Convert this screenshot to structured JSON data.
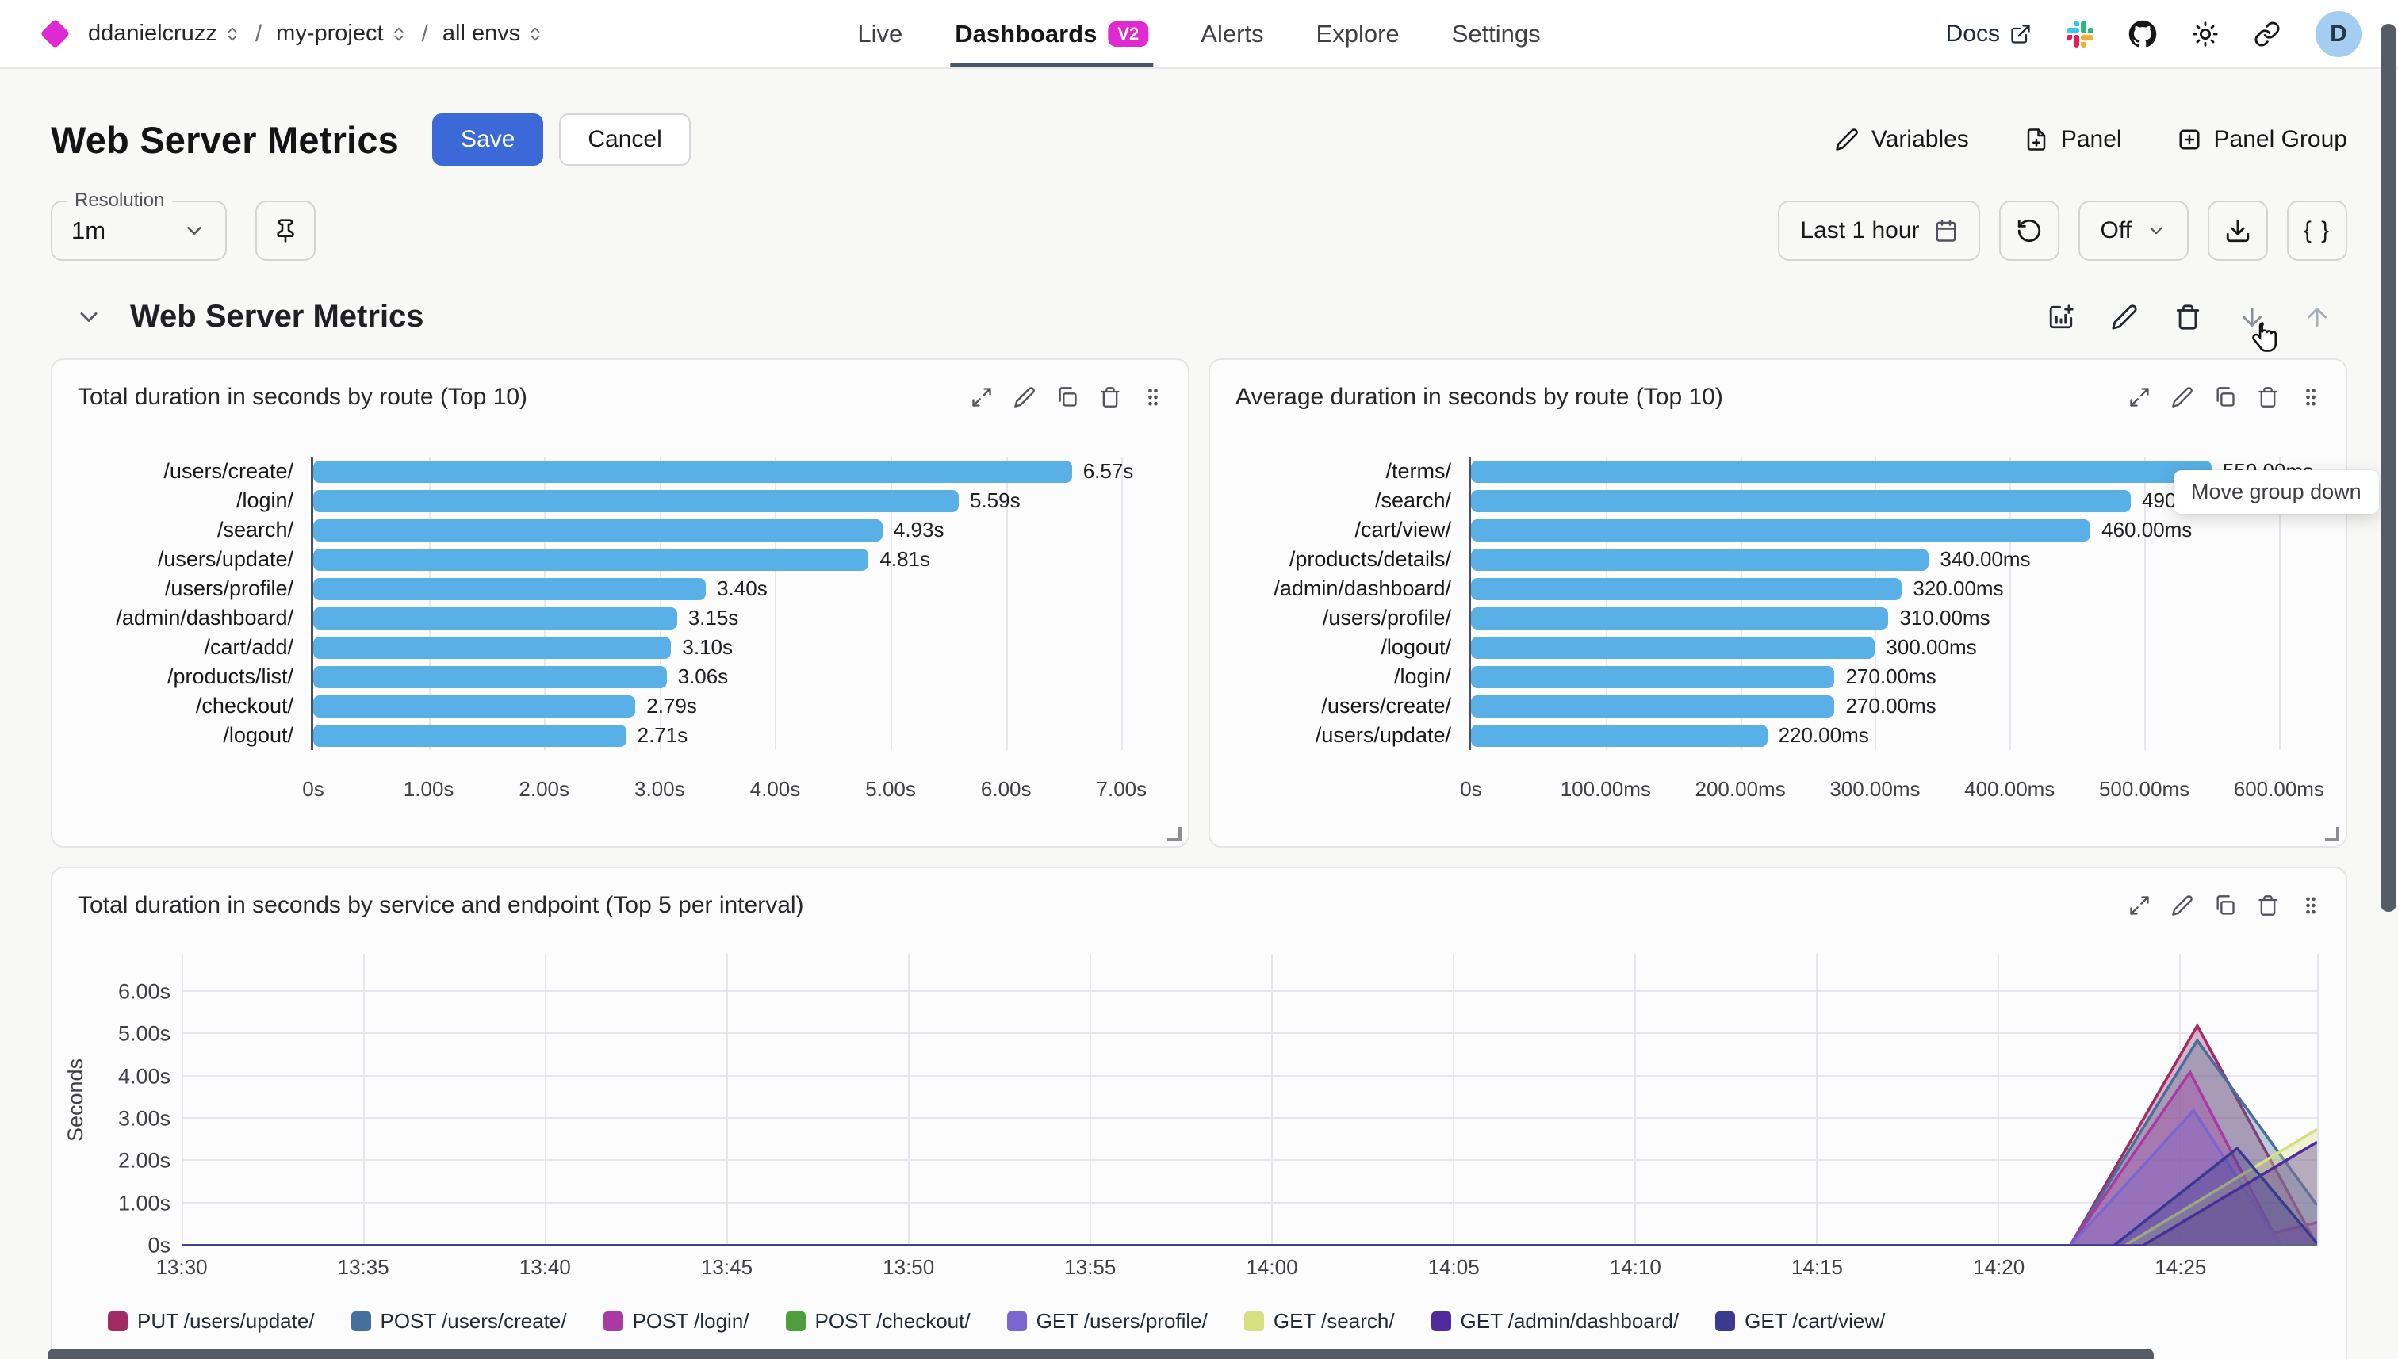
{
  "nav": {
    "breadcrumb": {
      "separator": "/",
      "items": [
        {
          "label": "ddanielcruzz"
        },
        {
          "label": "my-project"
        },
        {
          "label": "all envs"
        }
      ]
    },
    "tabs": [
      {
        "label": "Live",
        "active": false
      },
      {
        "label": "Dashboards",
        "active": true,
        "badge": "V2"
      },
      {
        "label": "Alerts",
        "active": false
      },
      {
        "label": "Explore",
        "active": false
      },
      {
        "label": "Settings",
        "active": false
      }
    ],
    "docs_label": "Docs",
    "avatar_initial": "D"
  },
  "header": {
    "title": "Web Server Metrics",
    "save_label": "Save",
    "cancel_label": "Cancel",
    "variables_label": "Variables",
    "panel_label": "Panel",
    "panel_group_label": "Panel Group"
  },
  "toolbar": {
    "resolution_label": "Resolution",
    "resolution_value": "1m",
    "time_range_value": "Last 1 hour",
    "refresh_interval_value": "Off",
    "braces_label": "{ }",
    "tooltip_text": "Move group down"
  },
  "group": {
    "title": "Web Server Metrics"
  },
  "colors": {
    "accent_magenta": "#df2ad2",
    "primary_blue": "#3c69d8",
    "bar_blue": "#58b0e6"
  },
  "chart_data": [
    {
      "type": "bar",
      "orientation": "horizontal",
      "title": "Total duration in seconds by route (Top 10)",
      "categories": [
        "/users/create/",
        "/login/",
        "/search/",
        "/users/update/",
        "/users/profile/",
        "/admin/dashboard/",
        "/cart/add/",
        "/products/list/",
        "/checkout/",
        "/logout/"
      ],
      "values": [
        6.57,
        5.59,
        4.93,
        4.81,
        3.4,
        3.15,
        3.1,
        3.06,
        2.79,
        2.71
      ],
      "value_labels": [
        "6.57s",
        "5.59s",
        "4.93s",
        "4.81s",
        "3.40s",
        "3.15s",
        "3.10s",
        "3.06s",
        "2.79s",
        "2.71s"
      ],
      "x_ticks": [
        {
          "v": 0,
          "label": "0s"
        },
        {
          "v": 1,
          "label": "1.00s"
        },
        {
          "v": 2,
          "label": "2.00s"
        },
        {
          "v": 3,
          "label": "3.00s"
        },
        {
          "v": 4,
          "label": "4.00s"
        },
        {
          "v": 5,
          "label": "5.00s"
        },
        {
          "v": 6,
          "label": "6.00s"
        },
        {
          "v": 7,
          "label": "7.00s"
        }
      ],
      "x_max": 7.3,
      "bar_color": "#58b0e6"
    },
    {
      "type": "bar",
      "orientation": "horizontal",
      "title": "Average duration in seconds by route (Top 10)",
      "categories": [
        "/terms/",
        "/search/",
        "/cart/view/",
        "/products/details/",
        "/admin/dashboard/",
        "/users/profile/",
        "/logout/",
        "/login/",
        "/users/create/",
        "/users/update/"
      ],
      "values": [
        550,
        490,
        460,
        340,
        320,
        310,
        300,
        270,
        270,
        220
      ],
      "value_labels": [
        "550.00ms",
        "490.00ms",
        "460.00ms",
        "340.00ms",
        "320.00ms",
        "310.00ms",
        "300.00ms",
        "270.00ms",
        "270.00ms",
        "220.00ms"
      ],
      "x_ticks": [
        {
          "v": 0,
          "label": "0s"
        },
        {
          "v": 100,
          "label": "100.00ms"
        },
        {
          "v": 200,
          "label": "200.00ms"
        },
        {
          "v": 300,
          "label": "300.00ms"
        },
        {
          "v": 400,
          "label": "400.00ms"
        },
        {
          "v": 500,
          "label": "500.00ms"
        },
        {
          "v": 600,
          "label": "600.00ms"
        }
      ],
      "x_max": 626,
      "bar_color": "#58b0e6"
    },
    {
      "type": "area",
      "title": "Total duration in seconds by service and endpoint (Top 5 per interval)",
      "ylabel": "Seconds",
      "y_ticks": [
        {
          "v": 0,
          "label": "0s"
        },
        {
          "v": 1,
          "label": "1.00s"
        },
        {
          "v": 2,
          "label": "2.00s"
        },
        {
          "v": 3,
          "label": "3.00s"
        },
        {
          "v": 4,
          "label": "4.00s"
        },
        {
          "v": 5,
          "label": "5.00s"
        },
        {
          "v": 6,
          "label": "6.00s"
        }
      ],
      "y_max": 6.9,
      "x_ticks": [
        {
          "v": 0,
          "label": "13:30"
        },
        {
          "v": 5,
          "label": "13:35"
        },
        {
          "v": 10,
          "label": "13:40"
        },
        {
          "v": 15,
          "label": "13:45"
        },
        {
          "v": 20,
          "label": "13:50"
        },
        {
          "v": 25,
          "label": "13:55"
        },
        {
          "v": 30,
          "label": "14:00"
        },
        {
          "v": 35,
          "label": "14:05"
        },
        {
          "v": 40,
          "label": "14:10"
        },
        {
          "v": 45,
          "label": "14:15"
        },
        {
          "v": 50,
          "label": "14:20"
        },
        {
          "v": 55,
          "label": "14:25"
        }
      ],
      "x_max": 58.8,
      "series": [
        {
          "name": "PUT /users/update/",
          "color": "#a02c66",
          "points": [
            [
              0,
              0
            ],
            [
              52,
              0
            ],
            [
              55.5,
              5.2
            ],
            [
              58.8,
              0
            ]
          ]
        },
        {
          "name": "POST /users/create/",
          "color": "#466f9c",
          "points": [
            [
              0,
              0
            ],
            [
              52,
              0
            ],
            [
              55.5,
              4.85
            ],
            [
              58.8,
              0.95
            ]
          ]
        },
        {
          "name": "POST /login/",
          "color": "#a939a3",
          "points": [
            [
              0,
              0
            ],
            [
              52,
              0
            ],
            [
              55.3,
              4.1
            ],
            [
              57.6,
              0.3
            ],
            [
              58.8,
              0.55
            ]
          ]
        },
        {
          "name": "POST /checkout/",
          "color": "#4f9e3d",
          "points": [
            [
              0,
              0
            ],
            [
              58.8,
              0
            ]
          ]
        },
        {
          "name": "GET /users/profile/",
          "color": "#7a66cf",
          "points": [
            [
              0,
              0
            ],
            [
              52,
              0
            ],
            [
              55.4,
              3.2
            ],
            [
              57.8,
              0
            ]
          ]
        },
        {
          "name": "GET /search/",
          "color": "#d6e07f",
          "points": [
            [
              0,
              0
            ],
            [
              53.5,
              0
            ],
            [
              58.8,
              2.75
            ]
          ]
        },
        {
          "name": "GET /admin/dashboard/",
          "color": "#4f2b9e",
          "points": [
            [
              0,
              0
            ],
            [
              54,
              0
            ],
            [
              58.8,
              2.45
            ]
          ]
        },
        {
          "name": "GET /cart/view/",
          "color": "#3a3a8f",
          "points": [
            [
              0,
              0
            ],
            [
              53.2,
              0
            ],
            [
              56.6,
              2.3
            ],
            [
              58.8,
              0.05
            ]
          ]
        }
      ]
    }
  ]
}
